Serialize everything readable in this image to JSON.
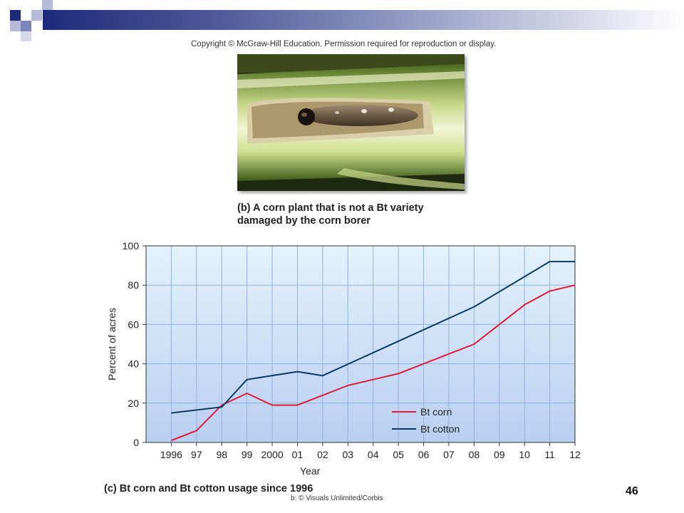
{
  "slide": {
    "copyright": "Copyright © McGraw-Hill Education. Permission required for reproduction or display.",
    "caption_b_line1": "(b) A corn plant that is not a Bt variety",
    "caption_b_line2": "damaged by the corn borer",
    "caption_c": "(c) Bt corn and Bt cotton usage since 1996",
    "credit": "b: © Visuals Unlimited/Corbis",
    "page_number": "46"
  },
  "chart_data": {
    "type": "line",
    "title": "",
    "xlabel": "Year",
    "ylabel": "Percent of acres",
    "x": [
      1996,
      1997,
      1998,
      1999,
      2000,
      2001,
      2002,
      2003,
      2004,
      2005,
      2006,
      2007,
      2008,
      2009,
      2010,
      2011,
      2012
    ],
    "x_tick_labels": [
      "1996",
      "97",
      "98",
      "99",
      "2000",
      "01",
      "02",
      "03",
      "04",
      "05",
      "06",
      "07",
      "08",
      "09",
      "10",
      "11",
      "12"
    ],
    "y_ticks": [
      0,
      20,
      40,
      60,
      80,
      100
    ],
    "ylim": [
      0,
      100
    ],
    "xlim": [
      1995,
      2012
    ],
    "grid": true,
    "legend_position": "bottom-right",
    "series": [
      {
        "name": "Bt corn",
        "color": "#e0193a",
        "points": [
          [
            1996,
            1
          ],
          [
            1997,
            6
          ],
          [
            1998,
            19
          ],
          [
            1999,
            25
          ],
          [
            2000,
            19
          ],
          [
            2001,
            19
          ],
          [
            2002,
            24
          ],
          [
            2003,
            29
          ],
          [
            2004,
            32
          ],
          [
            2005,
            35
          ],
          [
            2006,
            40
          ],
          [
            2007,
            45
          ],
          [
            2008,
            50
          ],
          [
            2009,
            60
          ],
          [
            2010,
            70
          ],
          [
            2011,
            77
          ],
          [
            2012,
            80
          ]
        ]
      },
      {
        "name": "Bt cotton",
        "color": "#0c3a66",
        "points": [
          [
            1996,
            15
          ],
          [
            1998,
            18
          ],
          [
            1999,
            32
          ],
          [
            2001,
            36
          ],
          [
            2002,
            34
          ],
          [
            2008,
            69
          ],
          [
            2011,
            92
          ],
          [
            2012,
            92
          ]
        ]
      }
    ]
  }
}
